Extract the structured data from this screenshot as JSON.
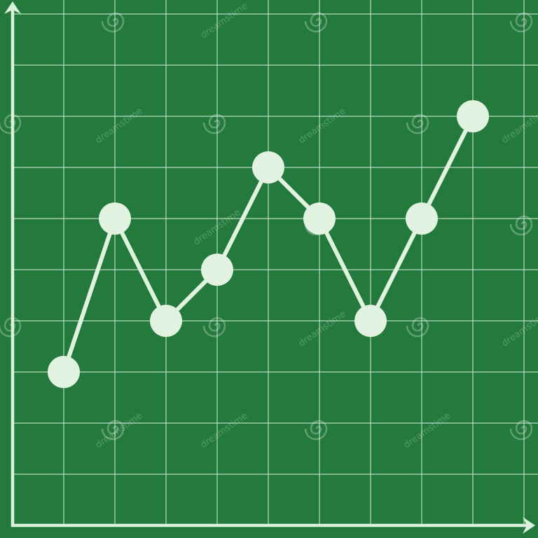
{
  "colors": {
    "background": "#247a3c",
    "grid": "#cfead6",
    "axis": "#dcf1dc",
    "series": "#e2f2e0"
  },
  "watermark": {
    "text": "dreamstime"
  },
  "chart_data": {
    "type": "line",
    "title": "",
    "xlabel": "",
    "ylabel": "",
    "grid": true,
    "legend": "none",
    "xlim": [
      0,
      10
    ],
    "ylim": [
      0,
      10
    ],
    "series": [
      {
        "x": [
          1,
          2,
          3,
          4,
          5,
          6,
          7,
          8,
          9
        ],
        "values": [
          3,
          6,
          4,
          5,
          7,
          6,
          4,
          6,
          8
        ]
      }
    ]
  }
}
